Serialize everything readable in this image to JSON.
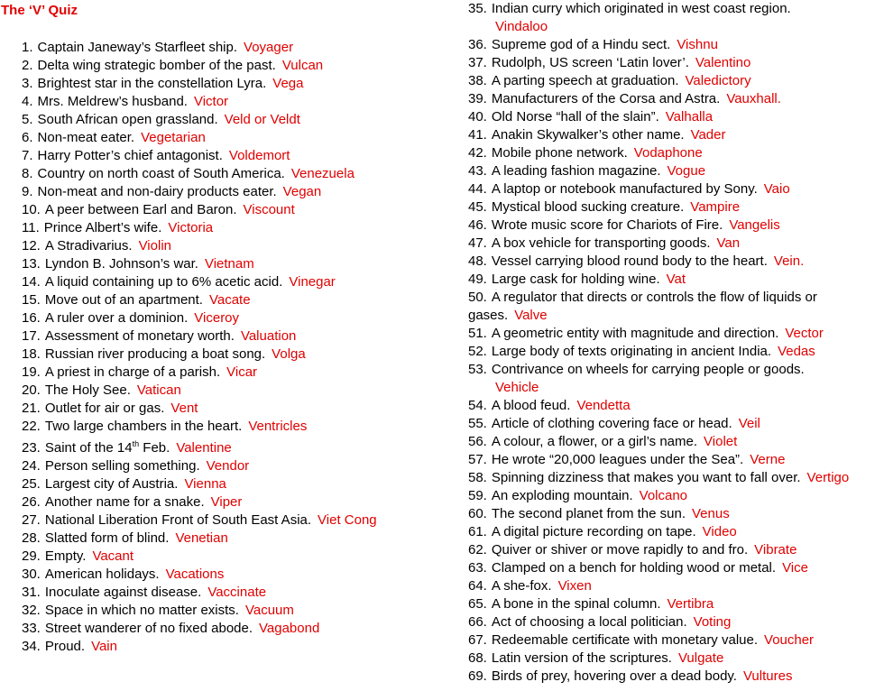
{
  "title": "The ‘V’ Quiz",
  "items": [
    {
      "number": "1.",
      "question": "Captain Janeway’s Starfleet ship.",
      "answer": "Voyager"
    },
    {
      "number": "2.",
      "question": "Delta wing strategic bomber of the past.",
      "answer": "Vulcan"
    },
    {
      "number": "3.",
      "question": "Brightest star in the constellation Lyra.",
      "answer": "Vega"
    },
    {
      "number": "4.",
      "question": "Mrs. Meldrew’s husband.",
      "answer": "Victor"
    },
    {
      "number": "5.",
      "question": "South African open grassland.",
      "answer": "Veld or Veldt"
    },
    {
      "number": "6.",
      "question": "Non-meat eater.",
      "answer": "Vegetarian"
    },
    {
      "number": "7.",
      "question": "Harry Potter’s chief antagonist.",
      "answer": "Voldemort"
    },
    {
      "number": "8.",
      "question": "Country on north coast of South America.",
      "answer": "Venezuela"
    },
    {
      "number": "9.",
      "question": "Non-meat and non-dairy products eater.",
      "answer": "Vegan"
    },
    {
      "number": "10.",
      "question": "A peer between Earl and Baron.",
      "answer": "Viscount"
    },
    {
      "number": "11.",
      "question": "Prince Albert’s wife.",
      "answer": "Victoria"
    },
    {
      "number": "12.",
      "question": "A Stradivarius.",
      "answer": "Violin"
    },
    {
      "number": "13.",
      "question": "Lyndon B. Johnson’s war.",
      "answer": "Vietnam"
    },
    {
      "number": "14.",
      "question": "A liquid containing up to 6% acetic acid.",
      "answer": "Vinegar"
    },
    {
      "number": "15.",
      "question": "Move out of an apartment.",
      "answer": "Vacate"
    },
    {
      "number": "16.",
      "question": "A ruler over a dominion.",
      "answer": "Viceroy"
    },
    {
      "number": "17.",
      "question": "Assessment of monetary worth.",
      "answer": "Valuation"
    },
    {
      "number": "18.",
      "question": "Russian river producing a boat song.",
      "answer": "Volga"
    },
    {
      "number": "19.",
      "question": "A priest in charge of a parish.",
      "answer": "Vicar"
    },
    {
      "number": "20.",
      "question": "The Holy See.",
      "answer": "Vatican"
    },
    {
      "number": "21.",
      "question": "Outlet for air or gas.",
      "answer": "Vent"
    },
    {
      "number": "22.",
      "question": "Two large chambers in the heart.",
      "answer": "Ventricles"
    },
    {
      "number": "23.",
      "question": "Saint of the 14",
      "question_sup": "th",
      "question_tail": " Feb.",
      "answer": "Valentine"
    },
    {
      "number": "24.",
      "question": "Person selling something.",
      "answer": "Vendor"
    },
    {
      "number": "25.",
      "question": "Largest city of Austria.",
      "answer": "Vienna"
    },
    {
      "number": "26.",
      "question": "Another name for a snake.",
      "answer": "Viper"
    },
    {
      "number": "27.",
      "question": "National Liberation Front of South East Asia.",
      "answer": "Viet Cong"
    },
    {
      "number": "28.",
      "question": "Slatted form of blind.",
      "answer": "Venetian"
    },
    {
      "number": "29.",
      "question": "Empty.",
      "answer": "Vacant"
    },
    {
      "number": "30.",
      "question": "American holidays.",
      "answer": "Vacations"
    },
    {
      "number": "31.",
      "question": "Inoculate against disease.",
      "answer": "Vaccinate"
    },
    {
      "number": "32.",
      "question": "Space in which no matter exists.",
      "answer": "Vacuum"
    },
    {
      "number": "33.",
      "question": "Street wanderer of no fixed abode.",
      "answer": "Vagabond"
    },
    {
      "number": "34.",
      "question": "Proud.",
      "answer": "Vain"
    },
    {
      "number": "35.",
      "question": "Indian curry which originated in west coast region.",
      "answer": "Vindaloo"
    },
    {
      "number": "36.",
      "question": "Supreme god of a Hindu sect.",
      "answer": "Vishnu"
    },
    {
      "number": "37.",
      "question": "Rudolph, US screen ‘Latin lover’.",
      "answer": "Valentino"
    },
    {
      "number": "38.",
      "question": "A parting speech at graduation.",
      "answer": "Valedictory"
    },
    {
      "number": "39.",
      "question": "Manufacturers of the Corsa and Astra.",
      "answer": "Vauxhall."
    },
    {
      "number": "40.",
      "question": "Old Norse “hall of the slain”.",
      "answer": "Valhalla"
    },
    {
      "number": "41.",
      "question": "Anakin Skywalker’s other name.",
      "answer": "Vader"
    },
    {
      "number": "42.",
      "question": "Mobile phone network.",
      "answer": "Vodaphone"
    },
    {
      "number": "43.",
      "question": "A leading fashion magazine.",
      "answer": "Vogue"
    },
    {
      "number": "44.",
      "question": "A laptop or notebook manufactured by Sony.",
      "answer": "Vaio"
    },
    {
      "number": "45.",
      "question": "Mystical blood sucking creature.",
      "answer": "Vampire"
    },
    {
      "number": "46.",
      "question": "Wrote music score for Chariots of Fire.",
      "answer": "Vangelis"
    },
    {
      "number": "47.",
      "question": "A box vehicle for transporting goods.",
      "answer": "Van"
    },
    {
      "number": "48.",
      "question": "Vessel carrying blood round body to the heart.",
      "answer": "Vein."
    },
    {
      "number": "49.",
      "question": "Large cask for holding wine.",
      "answer": "Vat"
    },
    {
      "number": "50.",
      "question": "A regulator that directs or controls the flow of liquids or gases.",
      "answer": "Valve"
    },
    {
      "number": "51.",
      "question": "A geometric entity with magnitude and direction.",
      "answer": "Vector"
    },
    {
      "number": "52.",
      "question": "Large body of texts originating in ancient India.",
      "answer": "Vedas"
    },
    {
      "number": "53.",
      "question": "Contrivance on wheels for carrying people or goods.",
      "answer": "Vehicle"
    },
    {
      "number": "54.",
      "question": "A blood feud.",
      "answer": "Vendetta"
    },
    {
      "number": "55.",
      "question": "Article of clothing covering face or head.",
      "answer": "Veil"
    },
    {
      "number": "56.",
      "question": "A colour, a flower, or a girl’s name.",
      "answer": "Violet"
    },
    {
      "number": "57.",
      "question": "He wrote “20,000 leagues under the Sea”.",
      "answer": "Verne"
    },
    {
      "number": "58.",
      "question": "Spinning dizziness that makes you want to fall over.",
      "answer": "Vertigo"
    },
    {
      "number": "59.",
      "question": "An exploding mountain.",
      "answer": "Volcano"
    },
    {
      "number": "60.",
      "question": "The second planet from the sun.",
      "answer": "Venus"
    },
    {
      "number": "61.",
      "question": "A digital picture recording on tape.",
      "answer": "Video"
    },
    {
      "number": "62.",
      "question": "Quiver or shiver or move rapidly to and fro.",
      "answer": "Vibrate"
    },
    {
      "number": "63.",
      "question": "Clamped on a bench for holding wood or metal.",
      "answer": "Vice"
    },
    {
      "number": "64.",
      "question": "A she-fox.",
      "answer": "Vixen"
    },
    {
      "number": "65.",
      "question": "A bone in the spinal column.",
      "answer": "Vertibra"
    },
    {
      "number": "66.",
      "question": "Act of choosing a local politician.",
      "answer": "Voting"
    },
    {
      "number": "67.",
      "question": "Redeemable certificate with monetary value.",
      "answer": "Voucher"
    },
    {
      "number": "68.",
      "question": "Latin version of the scriptures.",
      "answer": "Vulgate"
    },
    {
      "number": "69.",
      "question": "Birds of prey, hovering over a dead body.",
      "answer": "Vultures"
    }
  ]
}
